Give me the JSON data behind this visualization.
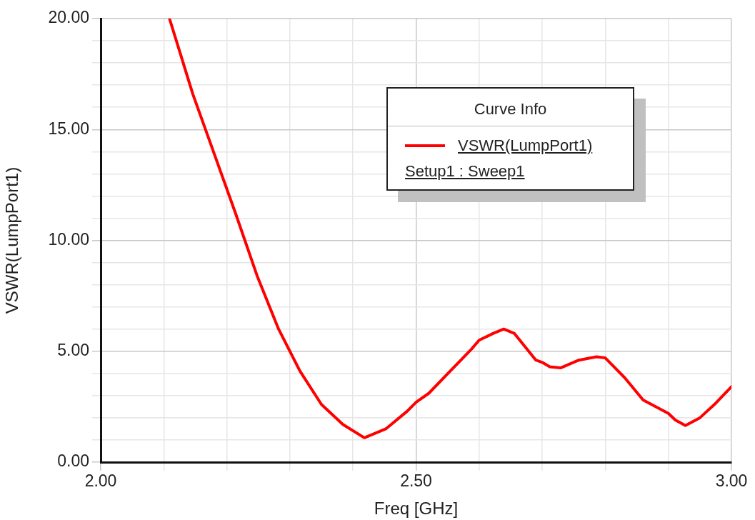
{
  "chart_data": {
    "type": "line",
    "xlabel": "Freq [GHz]",
    "ylabel": "VSWR(LumpPort1)",
    "legend_title": "Curve Info",
    "legend": "top right",
    "grid": true,
    "marker": "none",
    "line_style": "solid",
    "xlim": [
      2,
      3
    ],
    "ylim": [
      0,
      20
    ],
    "xticks": [
      {
        "value": 2,
        "label": "2.00"
      },
      {
        "value": 2.1,
        "label": null
      },
      {
        "value": 2.2,
        "label": null
      },
      {
        "value": 2.3,
        "label": null
      },
      {
        "value": 2.4,
        "label": null
      },
      {
        "value": 2.5,
        "label": "2.50"
      },
      {
        "value": 2.6,
        "label": null
      },
      {
        "value": 2.7,
        "label": null
      },
      {
        "value": 2.8,
        "label": null
      },
      {
        "value": 2.9,
        "label": null
      },
      {
        "value": 3,
        "label": "3.00"
      }
    ],
    "yticks": [
      {
        "value": 0,
        "label": "0.00"
      },
      {
        "value": 1,
        "label": null
      },
      {
        "value": 2,
        "label": null
      },
      {
        "value": 3,
        "label": null
      },
      {
        "value": 4,
        "label": null
      },
      {
        "value": 5,
        "label": "5.00"
      },
      {
        "value": 6,
        "label": null
      },
      {
        "value": 7,
        "label": null
      },
      {
        "value": 8,
        "label": null
      },
      {
        "value": 9,
        "label": null
      },
      {
        "value": 10,
        "label": "10.00"
      },
      {
        "value": 11,
        "label": null
      },
      {
        "value": 12,
        "label": null
      },
      {
        "value": 13,
        "label": null
      },
      {
        "value": 14,
        "label": null
      },
      {
        "value": 15,
        "label": "15.00"
      },
      {
        "value": 16,
        "label": null
      },
      {
        "value": 17,
        "label": null
      },
      {
        "value": 18,
        "label": null
      },
      {
        "value": 19,
        "label": null
      },
      {
        "value": 20,
        "label": "20.00"
      }
    ],
    "annotations": [
      "Setup1 : Sweep1"
    ],
    "series": [
      {
        "name": "VSWR(LumpPort1)",
        "color": "#ff0000",
        "x": [
          2.109,
          2.146,
          2.18,
          2.214,
          2.248,
          2.282,
          2.316,
          2.35,
          2.384,
          2.418,
          2.452,
          2.486,
          2.5,
          2.52,
          2.554,
          2.588,
          2.6,
          2.622,
          2.639,
          2.656,
          2.69,
          2.7,
          2.712,
          2.729,
          2.758,
          2.786,
          2.8,
          2.831,
          2.86,
          2.9,
          2.911,
          2.927,
          2.95,
          2.973,
          3.0
        ],
        "values": [
          20.0,
          16.6,
          13.9,
          11.2,
          8.4,
          6.0,
          4.1,
          2.6,
          1.7,
          1.1,
          1.5,
          2.3,
          2.7,
          3.1,
          4.1,
          5.1,
          5.5,
          5.8,
          6.0,
          5.8,
          4.6,
          4.5,
          4.3,
          4.25,
          4.6,
          4.75,
          4.7,
          3.8,
          2.8,
          2.2,
          1.9,
          1.65,
          2.0,
          2.6,
          3.4
        ]
      }
    ]
  }
}
